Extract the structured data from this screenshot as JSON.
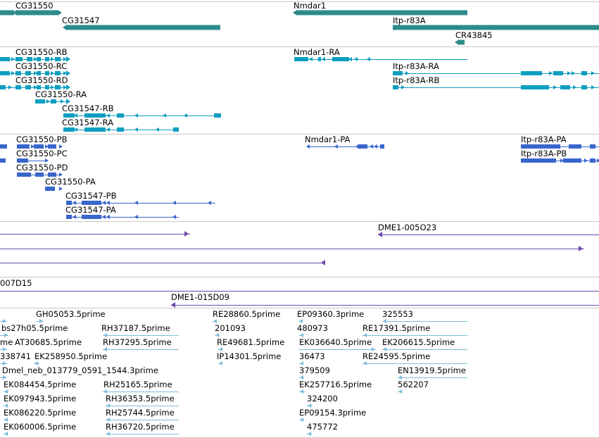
{
  "tracks": {
    "genes": {
      "labels": [
        "CG31550",
        "Nmdar1",
        "CG31547",
        "Itp-r83A",
        "CR43845"
      ]
    },
    "transcripts": {
      "labels": [
        "CG31550-RB",
        "Nmdar1-RA",
        "CG31550-RC",
        "Itp-r83A-RA",
        "CG31550-RD",
        "Itp-r83A-RB",
        "CG31550-RA",
        "CG31547-RB",
        "CG31547-RA"
      ]
    },
    "proteins": {
      "labels": [
        "CG31550-PB",
        "Nmdar1-PA",
        "Itp-r83A-PA",
        "CG31550-PC",
        "Itp-r83A-PB",
        "CG31550-PD",
        "CG31550-PA",
        "CG31547-PB",
        "CG31547-PA"
      ]
    },
    "clones": {
      "labels": [
        "DME1-005O23",
        "007D15",
        "DME1-015D09"
      ]
    },
    "ests": {
      "labels": [
        "GH05053.5prime",
        "RE28860.5prime",
        "EP09360.3prime",
        "325553",
        "bs27h05.5prime",
        "RH37187.5prime",
        "201093",
        "480973",
        "RE17391.5prime",
        "me",
        "AT30685.5prime",
        "RH37295.5prime",
        "RE49681.5prime",
        "EK036640.5prime",
        "EK206615.5prime",
        "338741",
        "EK258950.5prime",
        "IP14301.5prime",
        "36473",
        "RE24595.5prime",
        "Dmel_neb_013779_0591_1544.3prime",
        "379509",
        "EN13919.5prime",
        "EK084454.5prime",
        "RH25165.5prime",
        "EK257716.5prime",
        "562207",
        "EK097943.5prime",
        "RH36353.5prime",
        "324200",
        "EK086220.5prime",
        "RH25744.5prime",
        "EP09154.3prime",
        "EK060006.5prime",
        "RH36720.5prime",
        "475772"
      ]
    }
  },
  "colors": {
    "gene": "#2e8b8b",
    "transcript": "#0e9fc0",
    "protein": "#3a66cc",
    "clone": "#6a4aa8",
    "est": "#7cbcdc",
    "separator": "#c8c8c8"
  }
}
